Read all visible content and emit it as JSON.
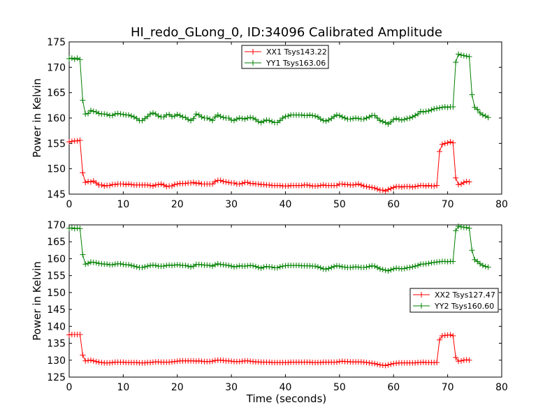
{
  "colors": {
    "xx": "#ff0000",
    "yy": "#008000",
    "axis": "#000000",
    "background": "#ffffff"
  },
  "chart_data": [
    {
      "type": "line",
      "title": "HI_redo_GLong_0, ID:34096 Calibrated Amplitude",
      "xlabel": "",
      "ylabel": "Power in Kelvin",
      "xlim": [
        0,
        80
      ],
      "ylim": [
        145,
        175
      ],
      "xticks": [
        "0",
        "10",
        "20",
        "30",
        "40",
        "50",
        "60",
        "70",
        "80"
      ],
      "yticks": [
        "145",
        "150",
        "155",
        "160",
        "165",
        "170",
        "175"
      ],
      "grid": false,
      "legend_position": "top-center",
      "marker": "plus",
      "x_start": 0,
      "x_step": 0.5,
      "series": [
        {
          "name": "XX1 Tsys143.22",
          "color": "#ff0000",
          "values": [
            155.3,
            155.4,
            155.5,
            155.5,
            155.6,
            149.2,
            147.3,
            147.5,
            147.4,
            147.6,
            147.2,
            146.8,
            146.8,
            146.6,
            146.7,
            146.7,
            146.9,
            146.9,
            147.0,
            147.0,
            147.0,
            146.9,
            147.0,
            146.9,
            146.8,
            146.8,
            146.8,
            146.8,
            146.8,
            146.8,
            146.7,
            146.6,
            146.8,
            146.9,
            147.0,
            146.8,
            146.5,
            146.6,
            146.6,
            146.9,
            147.0,
            147.1,
            147.1,
            147.1,
            147.2,
            147.2,
            147.3,
            147.1,
            147.2,
            147.0,
            147.0,
            147.0,
            147.0,
            147.0,
            147.5,
            147.7,
            147.7,
            147.5,
            147.4,
            147.3,
            147.2,
            147.2,
            147.0,
            147.0,
            147.1,
            147.3,
            147.3,
            147.1,
            147.1,
            147.0,
            147.0,
            146.9,
            146.9,
            146.8,
            146.8,
            146.7,
            146.7,
            146.7,
            146.7,
            146.6,
            146.6,
            146.6,
            146.7,
            146.7,
            146.7,
            146.7,
            146.7,
            146.8,
            146.8,
            146.7,
            146.6,
            146.6,
            146.6,
            146.7,
            146.8,
            146.7,
            146.7,
            146.7,
            146.7,
            146.7,
            147.0,
            147.0,
            146.9,
            146.9,
            146.8,
            146.8,
            146.9,
            147.0,
            146.8,
            146.6,
            146.5,
            146.4,
            146.3,
            146.2,
            146.0,
            145.8,
            145.8,
            145.6,
            145.9,
            146.1,
            146.3,
            146.5,
            146.5,
            146.4,
            146.5,
            146.5,
            146.5,
            146.4,
            146.5,
            146.6,
            146.7,
            146.7,
            146.6,
            146.7,
            146.6,
            146.6,
            146.7,
            153.4,
            154.8,
            155.0,
            155.1,
            155.3,
            155.1,
            148.2,
            146.9,
            147.0,
            147.3,
            147.5,
            147.4
          ],
          "values_sampling": "x_start + index * x_step"
        },
        {
          "name": "YY1 Tsys163.06",
          "color": "#008000",
          "values": [
            171.7,
            171.8,
            171.6,
            171.8,
            171.5,
            163.5,
            160.8,
            160.9,
            161.5,
            161.3,
            161.2,
            160.9,
            160.8,
            160.8,
            160.7,
            160.5,
            160.5,
            160.8,
            160.9,
            160.8,
            160.7,
            160.6,
            160.6,
            160.4,
            160.2,
            159.9,
            159.5,
            159.5,
            159.9,
            160.3,
            160.8,
            161.0,
            160.8,
            160.4,
            160.2,
            160.2,
            160.6,
            160.7,
            160.3,
            160.4,
            160.7,
            160.5,
            160.2,
            160.1,
            159.7,
            159.5,
            159.9,
            160.8,
            160.6,
            160.2,
            160.0,
            160.0,
            159.8,
            159.5,
            160.2,
            160.6,
            160.3,
            160.1,
            160.0,
            160.0,
            159.6,
            159.5,
            159.8,
            160.0,
            159.9,
            159.8,
            160.0,
            160.1,
            160.0,
            159.7,
            159.3,
            159.1,
            159.4,
            159.6,
            159.5,
            159.3,
            159.1,
            159.1,
            159.5,
            160.0,
            160.3,
            160.4,
            160.6,
            160.6,
            160.6,
            160.6,
            160.6,
            160.5,
            160.5,
            160.6,
            160.5,
            160.4,
            160.2,
            159.8,
            159.5,
            159.4,
            159.6,
            159.9,
            160.3,
            160.6,
            160.5,
            160.2,
            160.0,
            159.8,
            159.8,
            159.9,
            160.0,
            159.9,
            159.8,
            159.8,
            160.0,
            160.2,
            160.5,
            160.5,
            160.0,
            159.5,
            159.3,
            159.1,
            158.8,
            159.2,
            159.7,
            159.9,
            159.7,
            159.6,
            159.7,
            159.9,
            160.0,
            160.2,
            160.5,
            160.8,
            161.3,
            161.2,
            161.3,
            161.4,
            161.6,
            161.8,
            161.9,
            162.0,
            162.1,
            162.2,
            162.1,
            162.2,
            162.2,
            171.0,
            172.6,
            172.4,
            172.3,
            172.2,
            172.1,
            164.6,
            162.1,
            161.7,
            161.0,
            160.6,
            160.4,
            160.1
          ],
          "values_sampling": "x_start + index * x_step"
        }
      ]
    },
    {
      "type": "line",
      "title": "",
      "xlabel": "Time (seconds)",
      "ylabel": "Power in Kelvin",
      "xlim": [
        0,
        80
      ],
      "ylim": [
        125,
        170
      ],
      "xticks": [
        "0",
        "10",
        "20",
        "30",
        "40",
        "50",
        "60",
        "70",
        "80"
      ],
      "yticks": [
        "125",
        "130",
        "135",
        "140",
        "145",
        "150",
        "155",
        "160",
        "165",
        "170"
      ],
      "grid": false,
      "legend_position": "center-right",
      "marker": "plus",
      "x_start": 0,
      "x_step": 0.5,
      "series": [
        {
          "name": "XX2 Tsys127.47",
          "color": "#ff0000",
          "values": [
            137.5,
            137.6,
            137.6,
            137.6,
            137.6,
            131.5,
            129.8,
            129.9,
            130.0,
            129.8,
            129.6,
            129.4,
            129.3,
            129.2,
            129.2,
            129.2,
            129.3,
            129.4,
            129.4,
            129.4,
            129.4,
            129.3,
            129.3,
            129.3,
            129.3,
            129.3,
            129.2,
            129.2,
            129.2,
            129.3,
            129.3,
            129.4,
            129.5,
            129.5,
            129.4,
            129.4,
            129.4,
            129.4,
            129.5,
            129.6,
            129.7,
            129.8,
            129.8,
            129.8,
            129.8,
            129.8,
            129.8,
            129.7,
            129.8,
            129.7,
            129.6,
            129.6,
            129.6,
            129.7,
            129.9,
            130.0,
            130.0,
            129.9,
            129.8,
            129.8,
            129.7,
            129.6,
            129.6,
            129.6,
            129.7,
            129.8,
            129.8,
            129.7,
            129.6,
            129.5,
            129.5,
            129.4,
            129.4,
            129.4,
            129.4,
            129.3,
            129.3,
            129.3,
            129.3,
            129.3,
            129.3,
            129.3,
            129.4,
            129.4,
            129.4,
            129.4,
            129.4,
            129.4,
            129.4,
            129.4,
            129.3,
            129.3,
            129.3,
            129.3,
            129.4,
            129.4,
            129.4,
            129.4,
            129.4,
            129.4,
            129.6,
            129.7,
            129.6,
            129.6,
            129.5,
            129.5,
            129.5,
            129.5,
            129.5,
            129.4,
            129.3,
            129.2,
            129.1,
            129.0,
            128.8,
            128.6,
            128.5,
            128.4,
            128.6,
            128.8,
            129.0,
            129.1,
            129.2,
            129.2,
            129.2,
            129.2,
            129.2,
            129.2,
            129.2,
            129.3,
            129.3,
            129.4,
            129.3,
            129.3,
            129.3,
            129.3,
            129.3,
            136.0,
            137.2,
            137.3,
            137.4,
            137.5,
            137.2,
            130.8,
            129.7,
            129.8,
            130.0,
            130.1,
            130.0
          ],
          "values_sampling": "x_start + index * x_step"
        },
        {
          "name": "YY2 Tsys160.60",
          "color": "#008000",
          "values": [
            169.0,
            169.1,
            168.9,
            169.0,
            168.9,
            161.2,
            158.4,
            158.6,
            159.0,
            158.9,
            158.8,
            158.6,
            158.5,
            158.4,
            158.4,
            158.2,
            158.2,
            158.4,
            158.5,
            158.5,
            158.3,
            158.2,
            158.2,
            158.0,
            157.8,
            157.6,
            157.4,
            157.4,
            157.6,
            157.8,
            158.0,
            158.1,
            158.0,
            157.8,
            157.8,
            157.8,
            158.0,
            158.1,
            158.0,
            158.1,
            158.2,
            158.1,
            158.0,
            158.0,
            157.8,
            157.6,
            157.8,
            158.3,
            158.3,
            158.2,
            158.1,
            158.1,
            158.0,
            157.8,
            158.2,
            158.5,
            158.3,
            158.2,
            158.1,
            158.0,
            157.8,
            157.6,
            157.7,
            157.9,
            157.8,
            157.8,
            157.9,
            158.0,
            157.9,
            157.7,
            157.4,
            157.2,
            157.5,
            157.7,
            157.6,
            157.5,
            157.3,
            157.3,
            157.6,
            157.8,
            157.9,
            158.0,
            158.0,
            158.0,
            158.0,
            158.0,
            157.9,
            157.9,
            157.9,
            157.9,
            157.8,
            157.8,
            157.6,
            157.3,
            157.0,
            156.9,
            157.1,
            157.4,
            157.7,
            157.9,
            157.8,
            157.6,
            157.5,
            157.4,
            157.4,
            157.5,
            157.6,
            157.5,
            157.4,
            157.4,
            157.5,
            157.7,
            157.9,
            157.8,
            157.4,
            157.0,
            156.8,
            156.6,
            156.4,
            156.7,
            157.0,
            157.2,
            157.1,
            157.0,
            157.1,
            157.3,
            157.4,
            157.6,
            157.8,
            158.0,
            158.4,
            158.4,
            158.5,
            158.6,
            158.8,
            158.9,
            159.0,
            159.1,
            159.2,
            159.2,
            159.1,
            159.2,
            159.2,
            168.3,
            169.6,
            169.4,
            169.3,
            169.2,
            169.0,
            162.5,
            159.7,
            159.2,
            158.5,
            158.0,
            157.7,
            157.5
          ],
          "values_sampling": "x_start + index * x_step"
        }
      ]
    }
  ]
}
